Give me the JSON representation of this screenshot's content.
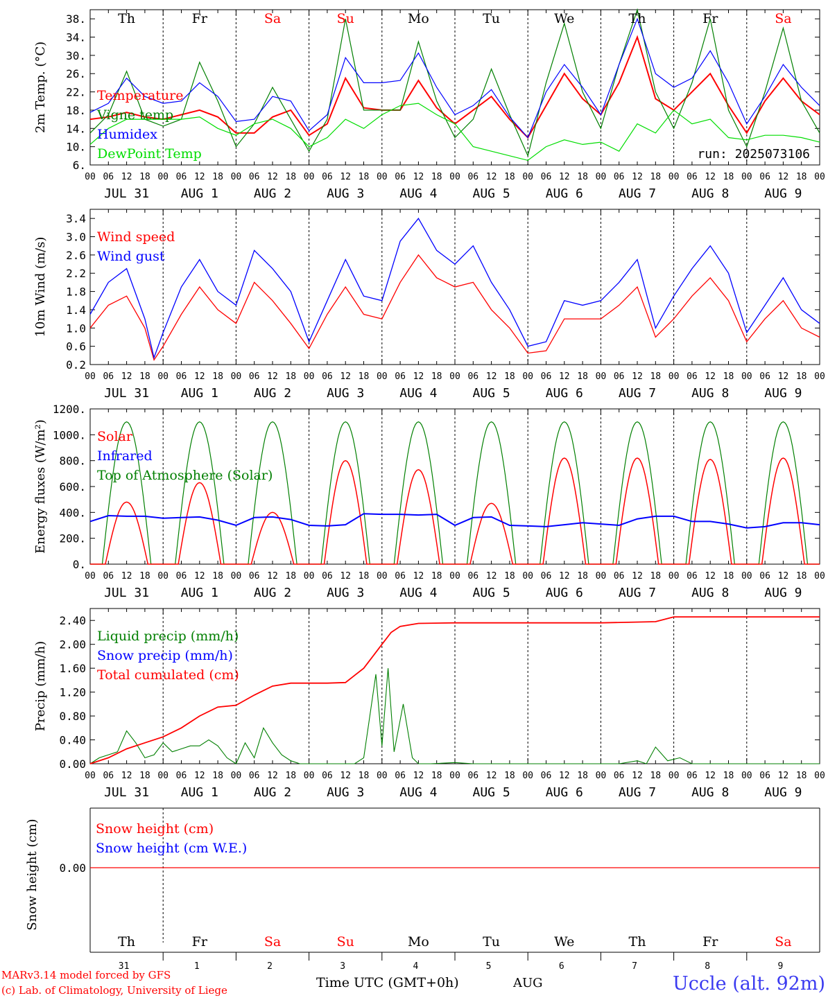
{
  "run_label": "run: 2025073106",
  "x_ticks_hours": [
    "00",
    "06",
    "12",
    "18"
  ],
  "date_labels": [
    "JUL  31",
    "AUG  1",
    "AUG  2",
    "AUG  3",
    "AUG  4",
    "AUG  5",
    "AUG  6",
    "AUG  7",
    "AUG  8",
    "AUG  9"
  ],
  "weekdays": [
    {
      "label": "Th",
      "color": "#000000"
    },
    {
      "label": "Fr",
      "color": "#000000"
    },
    {
      "label": "Sa",
      "color": "#ff0000"
    },
    {
      "label": "Su",
      "color": "#ff0000"
    },
    {
      "label": "Mo",
      "color": "#000000"
    },
    {
      "label": "Tu",
      "color": "#000000"
    },
    {
      "label": "We",
      "color": "#000000"
    },
    {
      "label": "Th",
      "color": "#000000"
    },
    {
      "label": "Fr",
      "color": "#000000"
    },
    {
      "label": "Sa",
      "color": "#ff0000"
    }
  ],
  "day_numbers": [
    "31",
    "1",
    "2",
    "3",
    "4",
    "5",
    "6",
    "7",
    "8",
    "9"
  ],
  "month_label": "AUG",
  "xlabel": "Time UTC (GMT+0h)",
  "footer": {
    "model": "MARv3.14 model forced by GFS",
    "credit": "(c) Lab. of Climatology, University of Liege",
    "location": "Uccle (alt. 92m)"
  },
  "chart_data": [
    {
      "type": "line",
      "ylabel": "2m Temp. (°C)",
      "ylim": [
        6,
        40
      ],
      "yticks": [
        "6.",
        "10.",
        "14.",
        "18.",
        "22.",
        "26.",
        "30.",
        "34.",
        "38."
      ],
      "x_unit": "hours since JUL 31 00 UTC",
      "series": [
        {
          "name": "Temperature",
          "color": "#ff0000",
          "x": [
            0,
            6,
            12,
            18,
            24,
            30,
            36,
            42,
            48,
            54,
            60,
            66,
            72,
            78,
            84,
            90,
            96,
            102,
            108,
            114,
            120,
            126,
            132,
            138,
            144,
            150,
            156,
            162,
            168,
            174,
            180,
            186,
            192,
            198,
            204,
            210,
            216,
            222,
            228,
            234,
            240
          ],
          "values": [
            16,
            16.5,
            17.5,
            16.5,
            16,
            17,
            18,
            16.5,
            13,
            13,
            16.5,
            18,
            12.5,
            15,
            25,
            18.5,
            18,
            18,
            24.5,
            18.5,
            15,
            18,
            21,
            16,
            12,
            19,
            26,
            20.5,
            17,
            24,
            34,
            20.5,
            18,
            22,
            26,
            19,
            13,
            20,
            25,
            20,
            17
          ]
        },
        {
          "name": "Vigne temp",
          "color": "#007f00",
          "x": [
            0,
            6,
            12,
            18,
            24,
            30,
            36,
            42,
            48,
            54,
            60,
            66,
            72,
            78,
            84,
            90,
            96,
            102,
            108,
            114,
            120,
            126,
            132,
            138,
            144,
            150,
            156,
            162,
            168,
            174,
            180,
            186,
            192,
            198,
            204,
            210,
            216,
            222,
            228,
            234,
            240
          ],
          "values": [
            13,
            17,
            26.5,
            16,
            14.5,
            16,
            28.5,
            20,
            10,
            15,
            23,
            16,
            9,
            16,
            38,
            18,
            18,
            18,
            33,
            20,
            12,
            16,
            27,
            17,
            8,
            24,
            37,
            22,
            14,
            28,
            40,
            22,
            14,
            24,
            38,
            18,
            10,
            22,
            36,
            20,
            13
          ]
        },
        {
          "name": "Humidex",
          "color": "#0000ff",
          "x": [
            0,
            6,
            12,
            18,
            24,
            30,
            36,
            42,
            48,
            54,
            60,
            66,
            72,
            78,
            84,
            90,
            96,
            102,
            108,
            114,
            120,
            126,
            132,
            138,
            144,
            150,
            156,
            162,
            168,
            174,
            180,
            186,
            192,
            198,
            204,
            210,
            216,
            222,
            228,
            234,
            240
          ],
          "values": [
            17.5,
            19.5,
            25,
            21,
            19.5,
            20,
            24,
            21,
            15.5,
            16,
            21,
            20,
            13.5,
            17,
            29.5,
            24,
            24,
            24.5,
            30.5,
            23,
            17,
            19,
            22.5,
            16.5,
            12,
            22,
            28,
            23,
            17,
            28,
            38,
            26,
            23,
            25,
            31,
            24,
            15,
            21,
            28,
            23,
            19
          ]
        },
        {
          "name": "DewPoint Temp",
          "color": "#00dd00",
          "x": [
            0,
            6,
            12,
            18,
            24,
            30,
            36,
            42,
            48,
            54,
            60,
            66,
            72,
            78,
            84,
            90,
            96,
            102,
            108,
            114,
            120,
            126,
            132,
            138,
            144,
            150,
            156,
            162,
            168,
            174,
            180,
            186,
            192,
            198,
            204,
            210,
            216,
            222,
            228,
            234,
            240
          ],
          "values": [
            10.5,
            14,
            16,
            16,
            16,
            16,
            16.5,
            14,
            12.5,
            15,
            16,
            14,
            10,
            12,
            16,
            14,
            17,
            19,
            19.5,
            17,
            15,
            10,
            9,
            8,
            7,
            10,
            11.5,
            10.5,
            11,
            9,
            15,
            13,
            18,
            15,
            16,
            12,
            11.5,
            12.5,
            12.5,
            12,
            11
          ]
        }
      ]
    },
    {
      "type": "line",
      "ylabel": "10m Wind (m/s)",
      "ylim": [
        0.2,
        3.6
      ],
      "yticks": [
        "0.2",
        "0.6",
        "1.0",
        "1.4",
        "1.8",
        "2.2",
        "2.6",
        "3.0",
        "3.4"
      ],
      "x_unit": "hours since JUL 31 00 UTC",
      "series": [
        {
          "name": "Wind speed",
          "color": "#ff0000",
          "x": [
            0,
            6,
            12,
            18,
            21,
            24,
            30,
            36,
            42,
            48,
            54,
            60,
            66,
            72,
            78,
            84,
            90,
            96,
            102,
            108,
            114,
            120,
            126,
            132,
            138,
            144,
            150,
            156,
            162,
            168,
            174,
            180,
            186,
            192,
            198,
            204,
            210,
            216,
            222,
            228,
            234,
            240
          ],
          "values": [
            1.0,
            1.5,
            1.7,
            1.0,
            0.3,
            0.6,
            1.3,
            1.9,
            1.4,
            1.1,
            2.0,
            1.6,
            1.1,
            0.55,
            1.3,
            1.9,
            1.3,
            1.2,
            2.0,
            2.6,
            2.1,
            1.9,
            2.0,
            1.4,
            1.0,
            0.45,
            0.5,
            1.2,
            1.2,
            1.2,
            1.5,
            1.9,
            0.8,
            1.2,
            1.7,
            2.1,
            1.6,
            0.7,
            1.2,
            1.6,
            1.0,
            0.8
          ]
        },
        {
          "name": "Wind gust",
          "color": "#0000ff",
          "x": [
            0,
            6,
            12,
            18,
            21,
            24,
            30,
            36,
            42,
            48,
            54,
            60,
            66,
            72,
            78,
            84,
            90,
            96,
            102,
            108,
            114,
            120,
            126,
            132,
            138,
            144,
            150,
            156,
            162,
            168,
            174,
            180,
            186,
            192,
            198,
            204,
            210,
            216,
            222,
            228,
            234,
            240
          ],
          "values": [
            1.3,
            2.0,
            2.3,
            1.2,
            0.35,
            0.9,
            1.9,
            2.5,
            1.8,
            1.5,
            2.7,
            2.3,
            1.8,
            0.7,
            1.6,
            2.5,
            1.7,
            1.6,
            2.9,
            3.4,
            2.7,
            2.4,
            2.8,
            2.0,
            1.4,
            0.6,
            0.7,
            1.6,
            1.5,
            1.6,
            2.0,
            2.5,
            1.0,
            1.7,
            2.3,
            2.8,
            2.2,
            0.9,
            1.5,
            2.1,
            1.4,
            1.1
          ]
        }
      ]
    },
    {
      "type": "line",
      "ylabel": "Energy fluxes (W/m²)",
      "ylim": [
        0,
        1200
      ],
      "yticks": [
        "0.",
        "200.",
        "400.",
        "600.",
        "800.",
        "1000.",
        "1200."
      ],
      "x_unit": "hours since JUL 31 00 UTC",
      "solar_peaks_by_day": [
        480,
        630,
        400,
        800,
        730,
        470,
        820,
        820,
        810,
        820
      ],
      "toa_peak": 1100,
      "series": [
        {
          "name": "Solar",
          "color": "#ff0000"
        },
        {
          "name": "Infrared",
          "color": "#0000ff",
          "x": [
            0,
            6,
            12,
            18,
            24,
            30,
            36,
            42,
            48,
            54,
            60,
            66,
            72,
            78,
            84,
            90,
            96,
            102,
            108,
            114,
            120,
            126,
            132,
            138,
            144,
            150,
            156,
            162,
            168,
            174,
            180,
            186,
            192,
            198,
            204,
            210,
            216,
            222,
            228,
            234,
            240
          ],
          "values": [
            330,
            375,
            370,
            370,
            355,
            360,
            365,
            340,
            300,
            360,
            365,
            345,
            300,
            295,
            305,
            390,
            385,
            385,
            380,
            385,
            300,
            360,
            365,
            300,
            295,
            290,
            305,
            320,
            310,
            300,
            350,
            370,
            370,
            330,
            330,
            310,
            280,
            290,
            320,
            320,
            305
          ]
        },
        {
          "name": "Top of Atmosphere (Solar)",
          "color": "#007f00"
        }
      ]
    },
    {
      "type": "line",
      "ylabel": "Precip (mm/h)",
      "ylim": [
        0,
        2.6
      ],
      "yticks": [
        "0.00",
        "0.40",
        "0.80",
        "1.20",
        "1.60",
        "2.00",
        "2.40"
      ],
      "x_unit": "hours since JUL 31 00 UTC",
      "series": [
        {
          "name": "Liquid precip (mm/h)",
          "color": "#007f00",
          "x": [
            0,
            3,
            6,
            9,
            12,
            15,
            18,
            21,
            24,
            27,
            30,
            33,
            36,
            39,
            42,
            45,
            48,
            51,
            54,
            57,
            60,
            63,
            66,
            69,
            72,
            78,
            84,
            87,
            90,
            92,
            94,
            96,
            98,
            100,
            103,
            106,
            108,
            112,
            120,
            126,
            132,
            138,
            144,
            150,
            156,
            162,
            168,
            174,
            180,
            183,
            186,
            190,
            194,
            198,
            204,
            210,
            216,
            222,
            228,
            234,
            240
          ],
          "values": [
            0,
            0.1,
            0.15,
            0.2,
            0.55,
            0.35,
            0.1,
            0.15,
            0.35,
            0.2,
            0.25,
            0.3,
            0.3,
            0.4,
            0.3,
            0.1,
            0,
            0.35,
            0.1,
            0.6,
            0.35,
            0.15,
            0.05,
            0,
            0,
            0,
            0,
            0,
            0.1,
            0.8,
            1.5,
            0.3,
            1.6,
            0.2,
            1.0,
            0.1,
            0,
            0,
            0.02,
            0,
            0,
            0,
            0,
            0,
            0,
            0,
            0,
            0,
            0.05,
            0,
            0.28,
            0.05,
            0.1,
            0,
            0,
            0,
            0,
            0,
            0,
            0,
            0
          ]
        },
        {
          "name": "Snow precip (mm/h)",
          "color": "#0000ff",
          "x": [],
          "values": []
        },
        {
          "name": "Total cumulated (cm)",
          "color": "#ff0000",
          "x": [
            0,
            6,
            12,
            18,
            24,
            30,
            36,
            42,
            48,
            54,
            60,
            66,
            72,
            78,
            84,
            90,
            93,
            96,
            99,
            102,
            108,
            120,
            144,
            168,
            186,
            192,
            216,
            240
          ],
          "values": [
            0,
            0.1,
            0.25,
            0.35,
            0.45,
            0.6,
            0.8,
            0.95,
            0.98,
            1.15,
            1.3,
            1.35,
            1.35,
            1.35,
            1.36,
            1.6,
            1.8,
            2.0,
            2.2,
            2.3,
            2.35,
            2.36,
            2.36,
            2.36,
            2.38,
            2.46,
            2.46,
            2.46
          ]
        }
      ]
    },
    {
      "type": "line",
      "ylabel": "Snow height (cm)",
      "ylim": [
        -1,
        1
      ],
      "yticks": [
        "0.00"
      ],
      "series": [
        {
          "name": "Snow height (cm)",
          "color": "#ff0000",
          "values": [
            0
          ]
        },
        {
          "name": "Snow height (cm W.E.)",
          "color": "#0000ff",
          "values": [
            0
          ]
        }
      ]
    }
  ]
}
